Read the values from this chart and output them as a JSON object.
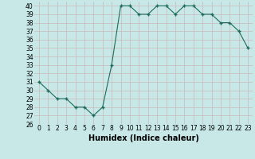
{
  "x": [
    0,
    1,
    2,
    3,
    4,
    5,
    6,
    7,
    8,
    9,
    10,
    11,
    12,
    13,
    14,
    15,
    16,
    17,
    18,
    19,
    20,
    21,
    22,
    23
  ],
  "y": [
    31,
    30,
    29,
    29,
    28,
    28,
    27,
    28,
    33,
    40,
    40,
    39,
    39,
    40,
    40,
    39,
    40,
    40,
    39,
    39,
    38,
    38,
    37,
    35
  ],
  "line_color": "#1a6b5a",
  "marker_color": "#1a6b5a",
  "bg_color": "#c8e8e8",
  "grid_color": "#c8b8b8",
  "xlabel": "Humidex (Indice chaleur)",
  "ylim": [
    26,
    40.5
  ],
  "xlim": [
    -0.5,
    23.5
  ],
  "yticks": [
    26,
    27,
    28,
    29,
    30,
    31,
    32,
    33,
    34,
    35,
    36,
    37,
    38,
    39,
    40
  ],
  "xticks": [
    0,
    1,
    2,
    3,
    4,
    5,
    6,
    7,
    8,
    9,
    10,
    11,
    12,
    13,
    14,
    15,
    16,
    17,
    18,
    19,
    20,
    21,
    22,
    23
  ],
  "tick_fontsize": 5.5,
  "xlabel_fontsize": 7.0
}
